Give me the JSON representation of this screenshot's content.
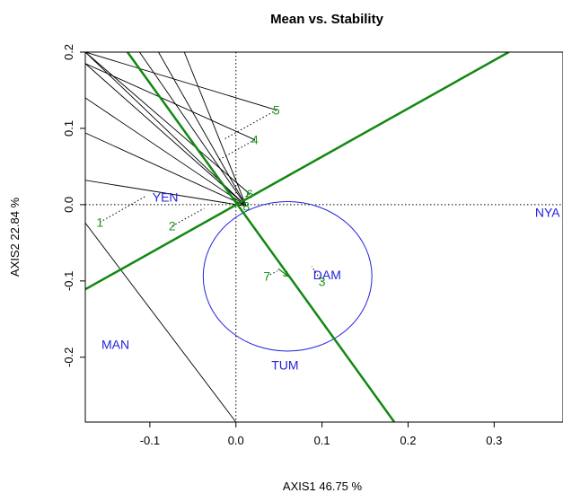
{
  "chart_data": {
    "type": "scatter",
    "title": "Mean vs. Stability",
    "xlabel": "AXIS1 46.75 %",
    "ylabel": "AXIS2 22.84 %",
    "xlim": [
      -0.175,
      0.38
    ],
    "ylim": [
      -0.285,
      0.2
    ],
    "xticks": [
      -0.1,
      0.0,
      0.1,
      0.2,
      0.3
    ],
    "xtick_labels": [
      "-0.1",
      "0.0",
      "0.1",
      "0.2",
      "0.3"
    ],
    "yticks": [
      -0.2,
      -0.1,
      0.0,
      0.1,
      0.2
    ],
    "ytick_labels": [
      "-0.2",
      "-0.1",
      "0.0",
      "0.1",
      "0.2"
    ],
    "grid": false,
    "reference_lines": {
      "x": 0,
      "y": 0,
      "style": "dotted"
    },
    "genotypes": [
      {
        "label": "1",
        "x": -0.158,
        "y": -0.023
      },
      {
        "label": "2",
        "x": -0.074,
        "y": -0.028
      },
      {
        "label": "3",
        "x": 0.1,
        "y": -0.101
      },
      {
        "label": "4",
        "x": 0.022,
        "y": 0.085
      },
      {
        "label": "5",
        "x": 0.047,
        "y": 0.124
      },
      {
        "label": "6",
        "x": 0.016,
        "y": 0.014
      },
      {
        "label": "7",
        "x": 0.036,
        "y": -0.094
      },
      {
        "label": "8",
        "x": 0.012,
        "y": -0.002
      }
    ],
    "environments": [
      {
        "label": "YEN",
        "x": -0.082,
        "y": 0.01
      },
      {
        "label": "NYA",
        "x": 0.362,
        "y": -0.01
      },
      {
        "label": "DAM",
        "x": 0.106,
        "y": -0.092
      },
      {
        "label": "MAN",
        "x": -0.14,
        "y": -0.183
      },
      {
        "label": "TUM",
        "x": 0.057,
        "y": -0.21
      }
    ],
    "mean_environment_point": {
      "x": 0.061,
      "y": -0.094
    },
    "ideal_circle": {
      "center": [
        0.06,
        -0.094
      ],
      "radius": 0.098
    },
    "aec_abscissa": {
      "from": [
        -0.175,
        -0.111
      ],
      "to": [
        0.317,
        0.2
      ]
    },
    "aec_ordinate": {
      "from": [
        -0.126,
        0.2
      ],
      "to": [
        0.184,
        -0.285
      ]
    },
    "projection_lines": [
      {
        "from": [
          -0.158,
          -0.023
        ],
        "to": [
          -0.105,
          0.011
        ]
      },
      {
        "from": [
          -0.074,
          -0.028
        ],
        "to": [
          -0.037,
          -0.005
        ]
      },
      {
        "from": [
          0.1,
          -0.101
        ],
        "to": [
          0.088,
          -0.081
        ]
      },
      {
        "from": [
          0.022,
          0.085
        ],
        "to": [
          -0.021,
          0.058
        ]
      },
      {
        "from": [
          0.047,
          0.124
        ],
        "to": [
          -0.015,
          0.085
        ]
      },
      {
        "from": [
          0.016,
          0.014
        ],
        "to": [
          0.011,
          0.01
        ]
      },
      {
        "from": [
          0.036,
          -0.094
        ],
        "to": [
          0.048,
          -0.087
        ]
      }
    ],
    "polygon_rays": [
      {
        "from": [
          0.012,
          -0.002
        ],
        "to": [
          -0.175,
          0.2
        ]
      },
      {
        "from": [
          0.012,
          -0.002
        ],
        "to": [
          -0.175,
          0.185
        ]
      },
      {
        "from": [
          0.012,
          -0.002
        ],
        "to": [
          -0.175,
          0.14
        ]
      },
      {
        "from": [
          0.012,
          -0.002
        ],
        "to": [
          -0.175,
          0.094
        ]
      },
      {
        "from": [
          0.012,
          -0.002
        ],
        "to": [
          -0.175,
          0.032
        ]
      },
      {
        "from": [
          0.012,
          -0.002
        ],
        "to": [
          -0.112,
          0.2
        ]
      },
      {
        "from": [
          0.012,
          -0.002
        ],
        "to": [
          -0.09,
          0.2
        ]
      },
      {
        "from": [
          0.012,
          -0.002
        ],
        "to": [
          -0.06,
          0.2
        ]
      },
      {
        "from": [
          -0.175,
          0.2
        ],
        "to": [
          0.047,
          0.124
        ]
      },
      {
        "from": [
          -0.175,
          0.185
        ],
        "to": [
          0.022,
          0.085
        ]
      },
      {
        "from": [
          -0.175,
          -0.024
        ],
        "to": [
          0.0,
          -0.285
        ]
      },
      {
        "from": [
          -0.175,
          0.2
        ],
        "to": [
          0.016,
          0.014
        ]
      }
    ],
    "colors": {
      "genotype": "#1a9a1a",
      "environment": "#2222dd",
      "aec_line": "#128812",
      "circle": "#2222dd",
      "ray": "#000000"
    }
  }
}
